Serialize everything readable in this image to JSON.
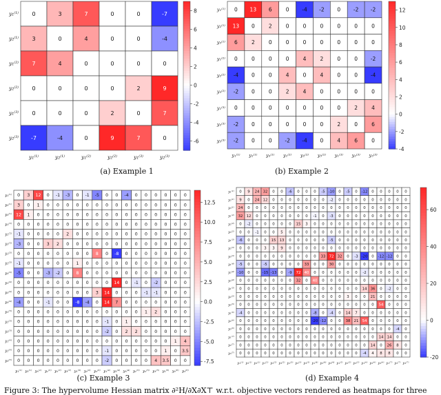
{
  "figure_caption": "Figure 3: The hypervolume Hessian matrix ∂²H/∂X∂X⊤ w.r.t. objective vectors rendered as heatmaps for three",
  "chart_data": [
    {
      "type": "heatmap",
      "caption": "(a) Example 1",
      "row_labels": [
        "y₁⁽¹⁾",
        "y₂⁽¹⁾",
        "y₁⁽²⁾",
        "y₂⁽²⁾",
        "y₁⁽³⁾",
        "y₂⁽³⁾"
      ],
      "col_labels": [
        "y₁⁽¹⁾",
        "y₂⁽¹⁾",
        "y₁⁽²⁾",
        "y₂⁽²⁾",
        "y₁⁽³⁾",
        "y₂⁽³⁾"
      ],
      "values": [
        [
          0,
          3,
          7,
          0,
          0,
          -7
        ],
        [
          3,
          0,
          4,
          0,
          0,
          -4
        ],
        [
          7,
          4,
          0,
          0,
          0,
          0
        ],
        [
          0,
          0,
          0,
          0,
          2,
          9
        ],
        [
          0,
          0,
          0,
          2,
          0,
          7
        ],
        [
          -7,
          -4,
          0,
          9,
          7,
          0
        ]
      ],
      "colorbar_ticks": [
        -6,
        -4,
        -2,
        0,
        2,
        4,
        6,
        8
      ],
      "vmin": -7,
      "vmax": 9
    },
    {
      "type": "heatmap",
      "caption": "(b) Example 2",
      "row_labels": [
        "y₁⁽¹⁾",
        "y₂⁽¹⁾",
        "y₃⁽¹⁾",
        "y₁⁽²⁾",
        "y₂⁽²⁾",
        "y₃⁽²⁾",
        "y₁⁽³⁾",
        "y₂⁽³⁾",
        "y₃⁽³⁾"
      ],
      "col_labels": [
        "y₁⁽¹⁾",
        "y₂⁽¹⁾",
        "y₃⁽¹⁾",
        "y₁⁽²⁾",
        "y₂⁽²⁾",
        "y₃⁽²⁾",
        "y₁⁽³⁾",
        "y₂⁽³⁾",
        "y₃⁽³⁾"
      ],
      "values": [
        [
          0,
          13,
          6,
          0,
          -4,
          -2,
          0,
          -2,
          -2
        ],
        [
          13,
          0,
          2,
          0,
          0,
          0,
          0,
          0,
          0
        ],
        [
          6,
          2,
          0,
          0,
          0,
          0,
          0,
          0,
          0
        ],
        [
          0,
          0,
          0,
          0,
          4,
          2,
          0,
          0,
          -2
        ],
        [
          -4,
          0,
          0,
          4,
          0,
          4,
          0,
          0,
          -4
        ],
        [
          -2,
          0,
          0,
          2,
          4,
          0,
          0,
          0,
          0
        ],
        [
          0,
          0,
          0,
          0,
          0,
          0,
          0,
          2,
          4
        ],
        [
          -2,
          0,
          0,
          0,
          0,
          0,
          2,
          0,
          6
        ],
        [
          -2,
          0,
          0,
          -2,
          -4,
          0,
          4,
          6,
          0
        ]
      ],
      "colorbar_ticks": [
        -4,
        -2,
        0,
        2,
        4,
        6,
        8,
        10,
        12
      ],
      "vmin": -4,
      "vmax": 13
    },
    {
      "type": "heatmap",
      "caption": "(c) Example 3",
      "row_labels": [
        "y₁⁽¹⁾",
        "y₂⁽¹⁾",
        "y₃⁽¹⁾",
        "y₁⁽²⁾",
        "y₂⁽²⁾",
        "y₃⁽²⁾",
        "y₁⁽³⁾",
        "y₂⁽³⁾",
        "y₃⁽³⁾",
        "y₁⁽⁴⁾",
        "y₂⁽⁴⁾",
        "y₃⁽⁴⁾",
        "y₁⁽⁵⁾",
        "y₂⁽⁵⁾",
        "y₃⁽⁵⁾",
        "y₁⁽⁶⁾",
        "y₂⁽⁶⁾",
        "y₃⁽⁶⁾"
      ],
      "col_labels": [
        "y₁⁽¹⁾",
        "y₂⁽¹⁾",
        "y₃⁽¹⁾",
        "y₁⁽²⁾",
        "y₂⁽²⁾",
        "y₃⁽²⁾",
        "y₁⁽³⁾",
        "y₂⁽³⁾",
        "y₃⁽³⁾",
        "y₁⁽⁴⁾",
        "y₂⁽⁴⁾",
        "y₃⁽⁴⁾",
        "y₁⁽⁵⁾",
        "y₂⁽⁵⁾",
        "y₃⁽⁵⁾",
        "y₁⁽⁶⁾",
        "y₂⁽⁶⁾",
        "y₃⁽⁶⁾"
      ],
      "values": [
        [
          0,
          3,
          12,
          0,
          -1,
          -3,
          0,
          -1,
          -5,
          0,
          0,
          -4,
          0,
          0,
          0,
          0,
          0,
          0
        ],
        [
          3,
          0,
          1,
          0,
          0,
          0,
          0,
          0,
          0,
          0,
          0,
          0,
          0,
          0,
          0,
          0,
          0,
          0
        ],
        [
          12,
          1,
          0,
          0,
          0,
          0,
          0,
          0,
          0,
          0,
          0,
          0,
          0,
          0,
          0,
          0,
          0,
          0
        ],
        [
          0,
          0,
          0,
          0,
          0,
          0,
          0,
          0,
          0,
          0,
          0,
          0,
          0,
          0,
          0,
          0,
          0,
          0
        ],
        [
          -1,
          0,
          0,
          0,
          0,
          2,
          0,
          0,
          0,
          0,
          0,
          0,
          0,
          0,
          0,
          0,
          0,
          0
        ],
        [
          -3,
          0,
          0,
          3,
          2,
          0,
          0,
          0,
          0,
          0,
          0,
          0,
          0,
          0,
          0,
          0,
          0,
          0
        ],
        [
          0,
          0,
          0,
          0,
          0,
          0,
          0,
          0,
          8,
          0,
          -8,
          0,
          0,
          0,
          0,
          0,
          0,
          0
        ],
        [
          -1,
          0,
          0,
          0,
          0,
          0,
          1,
          0,
          0,
          0,
          0,
          0,
          0,
          0,
          0,
          0,
          0,
          0
        ],
        [
          -5,
          0,
          0,
          -3,
          -2,
          0,
          8,
          0,
          0,
          0,
          0,
          0,
          0,
          0,
          0,
          0,
          0,
          0
        ],
        [
          0,
          0,
          0,
          0,
          0,
          0,
          0,
          0,
          0,
          0,
          14,
          0,
          -1,
          0,
          -2,
          0,
          0,
          0
        ],
        [
          0,
          0,
          0,
          0,
          0,
          0,
          0,
          0,
          3,
          14,
          0,
          0,
          0,
          -1,
          -1,
          0,
          0,
          0
        ],
        [
          -4,
          0,
          0,
          -1,
          0,
          0,
          -8,
          -4,
          0,
          14,
          7,
          0,
          0,
          0,
          0,
          0,
          0,
          0
        ],
        [
          0,
          0,
          0,
          0,
          0,
          0,
          0,
          0,
          0,
          0,
          0,
          0,
          0,
          1,
          2,
          0,
          0,
          0
        ],
        [
          0,
          0,
          0,
          0,
          0,
          0,
          0,
          0,
          0,
          -1,
          0,
          1,
          0,
          0,
          0,
          0,
          0,
          0
        ],
        [
          0,
          0,
          0,
          0,
          0,
          0,
          0,
          0,
          0,
          -2,
          0,
          2,
          2,
          0,
          0,
          0,
          0,
          0
        ],
        [
          0,
          0,
          0,
          0,
          0,
          0,
          0,
          0,
          0,
          0,
          0,
          0,
          0,
          0,
          0,
          0,
          1,
          4
        ],
        [
          0,
          0,
          0,
          0,
          0,
          0,
          0,
          0,
          0,
          -1,
          0,
          0,
          0,
          0,
          0,
          1,
          0,
          3.5
        ],
        [
          0,
          0,
          0,
          0,
          0,
          0,
          0,
          0,
          0,
          -2,
          0,
          0,
          0,
          0,
          4,
          3.5,
          0,
          0
        ]
      ],
      "colorbar_ticks": [
        -7.5,
        -5.0,
        -2.5,
        0.0,
        2.5,
        5.0,
        7.5,
        10.0,
        12.5
      ],
      "vmin": -8,
      "vmax": 14
    },
    {
      "type": "heatmap",
      "caption": "(d) Example 4",
      "row_labels": [
        "y₁⁽¹⁾",
        "y₂⁽¹⁾",
        "y₃⁽¹⁾",
        "y₁⁽²⁾",
        "y₂⁽²⁾",
        "y₃⁽²⁾",
        "y₁⁽³⁾",
        "y₂⁽³⁾",
        "y₃⁽³⁾",
        "y₁⁽⁴⁾",
        "y₂⁽⁴⁾",
        "y₃⁽⁴⁾",
        "y₁⁽⁵⁾",
        "y₂⁽⁵⁾",
        "y₃⁽⁵⁾",
        "y₁⁽⁶⁾",
        "y₂⁽⁶⁾",
        "y₃⁽⁶⁾",
        "y₁⁽⁷⁾",
        "y₂⁽⁷⁾",
        "y₃⁽⁷⁾"
      ],
      "col_labels": [
        "y₁⁽¹⁾",
        "y₂⁽¹⁾",
        "y₃⁽¹⁾",
        "y₁⁽²⁾",
        "y₂⁽²⁾",
        "y₃⁽²⁾",
        "y₁⁽³⁾",
        "y₂⁽³⁾",
        "y₃⁽³⁾",
        "y₁⁽⁴⁾",
        "y₂⁽⁴⁾",
        "y₃⁽⁴⁾",
        "y₁⁽⁵⁾",
        "y₂⁽⁵⁾",
        "y₃⁽⁵⁾",
        "y₁⁽⁶⁾",
        "y₂⁽⁶⁾",
        "y₃⁽⁶⁾",
        "y₁⁽⁷⁾",
        "y₂⁽⁷⁾",
        "y₃⁽⁷⁾"
      ],
      "values": [
        [
          0,
          9,
          24,
          32,
          0,
          0,
          -6,
          0,
          0,
          0,
          -5,
          -10,
          0,
          -5,
          0,
          -12,
          0,
          0,
          0,
          0,
          0
        ],
        [
          9,
          0,
          24,
          12,
          0,
          0,
          0,
          0,
          0,
          0,
          0,
          -2,
          0,
          0,
          0,
          0,
          0,
          0,
          0,
          0,
          0
        ],
        [
          24,
          0,
          0,
          0,
          0,
          0,
          0,
          0,
          0,
          0,
          0,
          0,
          0,
          0,
          0,
          0,
          0,
          0,
          0,
          0,
          0
        ],
        [
          32,
          12,
          0,
          0,
          0,
          0,
          0,
          0,
          0,
          -1,
          0,
          -3,
          0,
          0,
          0,
          0,
          0,
          0,
          0,
          0,
          0
        ],
        [
          0,
          -2,
          0,
          0,
          0,
          0,
          0,
          15,
          3,
          0,
          0,
          0,
          0,
          0,
          0,
          0,
          0,
          0,
          0,
          0,
          0
        ],
        [
          0,
          0,
          -1,
          0,
          0,
          5,
          0,
          0,
          0,
          0,
          0,
          0,
          0,
          0,
          0,
          0,
          0,
          0,
          0,
          0,
          0
        ],
        [
          -6,
          0,
          0,
          0,
          15,
          13,
          0,
          0,
          0,
          0,
          0,
          -5,
          0,
          0,
          0,
          0,
          0,
          0,
          0,
          0,
          0
        ],
        [
          0,
          0,
          0,
          3,
          3,
          9,
          0,
          0,
          0,
          0,
          0,
          0,
          0,
          0,
          0,
          0,
          0,
          0,
          0,
          0,
          0
        ],
        [
          0,
          0,
          0,
          0,
          0,
          0,
          0,
          0,
          0,
          0,
          33,
          72,
          32,
          0,
          -3,
          -20,
          0,
          -12,
          -12,
          0,
          0
        ],
        [
          -5,
          0,
          0,
          -5,
          0,
          0,
          0,
          0,
          33,
          0,
          0,
          30,
          0,
          0,
          0,
          0,
          0,
          0,
          0,
          0,
          0
        ],
        [
          -10,
          0,
          0,
          -15,
          -13,
          0,
          -9,
          72,
          40,
          0,
          0,
          0,
          0,
          0,
          0,
          -2,
          0,
          0,
          0,
          0,
          0
        ],
        [
          0,
          0,
          0,
          0,
          0,
          0,
          0,
          32,
          0,
          40,
          0,
          0,
          0,
          0,
          0,
          0,
          0,
          0,
          0,
          0,
          0
        ],
        [
          0,
          0,
          0,
          0,
          0,
          0,
          0,
          0,
          0,
          0,
          0,
          0,
          0,
          0,
          0,
          14,
          36,
          0,
          -2,
          0,
          0
        ],
        [
          0,
          0,
          0,
          0,
          0,
          0,
          0,
          0,
          0,
          0,
          0,
          0,
          0,
          3,
          0,
          0,
          21,
          0,
          0,
          0,
          0
        ],
        [
          0,
          0,
          0,
          0,
          0,
          0,
          0,
          0,
          0,
          0,
          0,
          0,
          0,
          0,
          0,
          0,
          0,
          54,
          0,
          0,
          0
        ],
        [
          -4,
          0,
          0,
          0,
          0,
          0,
          0,
          0,
          0,
          -8,
          0,
          -4,
          0,
          14,
          7,
          0,
          0,
          0,
          0,
          0,
          0
        ],
        [
          0,
          0,
          0,
          0,
          0,
          0,
          0,
          0,
          0,
          -20,
          -12,
          0,
          0,
          38,
          21,
          54,
          0,
          0,
          0,
          0,
          0
        ],
        [
          0,
          0,
          0,
          0,
          0,
          0,
          0,
          0,
          0,
          0,
          0,
          0,
          0,
          0,
          0,
          0,
          0,
          0,
          0,
          -4,
          0
        ],
        [
          0,
          0,
          0,
          0,
          0,
          0,
          0,
          0,
          0,
          0,
          0,
          0,
          0,
          0,
          0,
          0,
          0,
          14,
          14,
          0,
          0
        ],
        [
          0,
          0,
          0,
          0,
          0,
          0,
          0,
          0,
          0,
          0,
          0,
          0,
          0,
          0,
          0,
          0,
          14,
          0,
          26,
          8,
          0
        ],
        [
          0,
          0,
          0,
          0,
          0,
          0,
          0,
          0,
          0,
          0,
          0,
          0,
          0,
          0,
          0,
          -4,
          4,
          8,
          8,
          0,
          0
        ]
      ],
      "colorbar_ticks": [
        -20,
        0,
        20,
        40,
        60
      ],
      "vmin": -20,
      "vmax": 72
    }
  ]
}
